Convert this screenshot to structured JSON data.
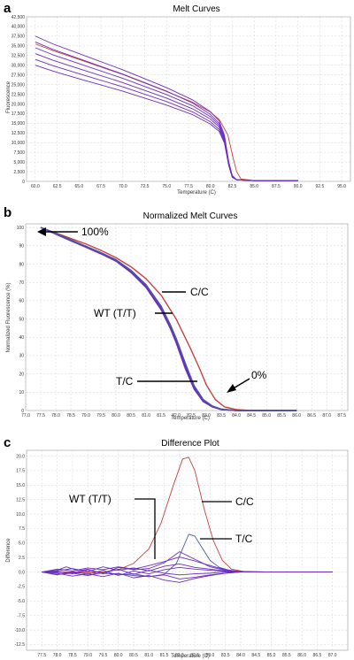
{
  "figure": {
    "panel_letters": [
      "a",
      "b",
      "c"
    ]
  },
  "colors": {
    "purple": "#6a2dc2",
    "red": "#c8423b",
    "steel_blue": "#4a5a9a",
    "grid": "#d4d4d4"
  },
  "chart_data": [
    {
      "type": "line",
      "title": "Melt Curves",
      "xlabel": "Temperature (C)",
      "ylabel": "Fluorescence",
      "x_ticks": [
        60,
        62.5,
        65,
        67.5,
        70,
        72.5,
        75,
        77.5,
        80,
        82.5,
        85,
        87.5,
        90,
        92.5,
        95
      ],
      "x_tick_labels": [
        "60.0",
        "62.5",
        "65.0",
        "67.5",
        "70.0",
        "72.5",
        "75.0",
        "77.5",
        "80.0",
        "82.5",
        "85.0",
        "87.5",
        "90.0",
        "92.5",
        "95.0"
      ],
      "xlim": [
        59,
        96
      ],
      "y_ticks": [
        0,
        2500,
        5000,
        7500,
        10000,
        12500,
        15000,
        17500,
        20000,
        22500,
        25000,
        27500,
        30000,
        32500,
        35000,
        37500,
        40000,
        42500
      ],
      "y_tick_labels": [
        "0",
        "2,500",
        "5,000",
        "7,500",
        "10,000",
        "12,500",
        "15,000",
        "17,500",
        "20,000",
        "22,500",
        "25,000",
        "27,500",
        "30,000",
        "32,500",
        "35,000",
        "37,500",
        "40,000",
        "42,500"
      ],
      "ylim": [
        0,
        42500
      ],
      "grid": true,
      "series": [
        {
          "color": "#c8423b",
          "x": [
            60,
            62,
            65,
            70,
            75,
            78,
            80,
            81,
            82,
            82.6,
            83,
            83.5,
            85,
            87,
            90
          ],
          "y": [
            35500,
            33800,
            31500,
            27600,
            23200,
            20400,
            17900,
            16000,
            12000,
            6000,
            2500,
            600,
            200,
            200,
            200
          ]
        },
        {
          "color": "#6a2dc2",
          "x": [
            60,
            62,
            65,
            70,
            75,
            78,
            80,
            81,
            81.6,
            82.1,
            82.5,
            83,
            85,
            87,
            90
          ],
          "y": [
            37500,
            35500,
            33000,
            28800,
            24200,
            21000,
            18000,
            15600,
            12000,
            5000,
            1500,
            400,
            200,
            200,
            200
          ]
        },
        {
          "color": "#6a2dc2",
          "x": [
            60,
            62,
            65,
            70,
            75,
            78,
            80,
            81,
            81.6,
            82.1,
            82.5,
            83,
            85,
            87,
            90
          ],
          "y": [
            36000,
            34100,
            31700,
            27700,
            23300,
            20200,
            17300,
            15000,
            11500,
            4800,
            1400,
            400,
            200,
            200,
            200
          ]
        },
        {
          "color": "#6a2dc2",
          "x": [
            60,
            62,
            65,
            70,
            75,
            78,
            80,
            81,
            81.6,
            82.1,
            82.5,
            83,
            85,
            87,
            90
          ],
          "y": [
            34500,
            32700,
            30400,
            26600,
            22400,
            19500,
            16700,
            14500,
            11100,
            4600,
            1300,
            400,
            200,
            200,
            200
          ]
        },
        {
          "color": "#6a2dc2",
          "x": [
            60,
            62,
            65,
            70,
            75,
            78,
            80,
            81,
            81.6,
            82.1,
            82.5,
            83,
            85,
            87,
            90
          ],
          "y": [
            33000,
            31300,
            29100,
            25500,
            21500,
            18700,
            16100,
            14000,
            10700,
            4400,
            1200,
            400,
            200,
            200,
            200
          ]
        },
        {
          "color": "#6a2dc2",
          "x": [
            60,
            62,
            65,
            70,
            75,
            78,
            80,
            81,
            81.6,
            82.1,
            82.5,
            83,
            85,
            87,
            90
          ],
          "y": [
            31500,
            29900,
            27800,
            24400,
            20600,
            17900,
            15400,
            13400,
            10300,
            4200,
            1100,
            400,
            200,
            200,
            200
          ]
        },
        {
          "color": "#6a2dc2",
          "x": [
            60,
            62,
            65,
            70,
            75,
            78,
            80,
            81,
            81.6,
            82.1,
            82.5,
            83,
            85,
            87,
            90
          ],
          "y": [
            30000,
            28500,
            26500,
            23300,
            19700,
            17200,
            14800,
            12900,
            9900,
            4000,
            1000,
            400,
            200,
            200,
            200
          ]
        }
      ]
    },
    {
      "type": "line",
      "title": "Normalized Melt Curves",
      "xlabel": "Temperature (C)",
      "ylabel": "Normalized Fluorescence (%)",
      "x_ticks": [
        77,
        77.5,
        78,
        78.5,
        79,
        79.5,
        80,
        80.5,
        81,
        81.5,
        82,
        82.5,
        83,
        83.5,
        84,
        84.5,
        85,
        85.5,
        86,
        86.5,
        87,
        87.5
      ],
      "x_tick_labels": [
        "77.0",
        "77.5",
        "78.0",
        "78.5",
        "79.0",
        "79.5",
        "80.0",
        "80.5",
        "81.0",
        "81.5",
        "82.0",
        "82.5",
        "83.0",
        "83.5",
        "84.0",
        "84.5",
        "85.0",
        "85.5",
        "86.0",
        "86.5",
        "87.0",
        "87.5"
      ],
      "xlim": [
        77,
        87.7
      ],
      "y_ticks": [
        0,
        10,
        20,
        30,
        40,
        50,
        60,
        70,
        80,
        90,
        100
      ],
      "y_tick_labels": [
        "0",
        "10",
        "20",
        "30",
        "40",
        "50",
        "60",
        "70",
        "80",
        "90",
        "100"
      ],
      "ylim": [
        0,
        102
      ],
      "grid": true,
      "annotations": [
        "100%",
        "C/C",
        "WT (T/T)",
        "T/C",
        "0%"
      ],
      "series": [
        {
          "color": "#c8423b",
          "x": [
            77.5,
            78,
            78.5,
            79,
            79.5,
            80,
            80.5,
            81,
            81.5,
            82,
            82.5,
            82.8,
            83,
            83.3,
            83.6,
            84,
            84.5,
            86
          ],
          "y": [
            100,
            97,
            94,
            91,
            87.5,
            83.5,
            78.5,
            72,
            63,
            50,
            33,
            22,
            14,
            6,
            2,
            0.5,
            0,
            0
          ]
        },
        {
          "color": "#6a2dc2",
          "x": [
            77.5,
            78,
            78.5,
            79,
            79.5,
            80,
            80.5,
            81,
            81.5,
            81.8,
            82,
            82.3,
            82.6,
            82.9,
            83.2,
            83.5,
            84,
            86
          ],
          "y": [
            100,
            96.5,
            93,
            89.5,
            86,
            82,
            76,
            68,
            56,
            46,
            38,
            24,
            12,
            5,
            2,
            0.5,
            0,
            0
          ]
        },
        {
          "color": "#6a2dc2",
          "x": [
            77.5,
            78,
            78.5,
            79,
            79.5,
            80,
            80.5,
            81,
            81.5,
            81.8,
            82,
            82.3,
            82.6,
            82.9,
            83.2,
            83.5,
            84,
            86
          ],
          "y": [
            100,
            96.7,
            93.3,
            89.8,
            86.3,
            82.4,
            76.6,
            68.7,
            57,
            47,
            39,
            25,
            12.5,
            5.2,
            2,
            0.5,
            0,
            0
          ]
        },
        {
          "color": "#6a2dc2",
          "x": [
            77.5,
            78,
            78.5,
            79,
            79.5,
            80,
            80.5,
            81,
            81.5,
            81.8,
            82,
            82.3,
            82.6,
            82.9,
            83.2,
            83.5,
            84,
            86
          ],
          "y": [
            100,
            96.3,
            92.7,
            89.2,
            85.6,
            81.6,
            75.4,
            67.2,
            55,
            45,
            37,
            23,
            11.5,
            4.8,
            2,
            0.5,
            0,
            0
          ]
        },
        {
          "color": "#4a5a9a",
          "x": [
            77.5,
            78,
            78.5,
            79,
            79.5,
            80,
            80.5,
            81,
            81.5,
            81.8,
            82,
            82.3,
            82.6,
            82.9,
            83.2,
            83.5,
            84,
            86
          ],
          "y": [
            100,
            96.6,
            93.2,
            89.7,
            86.2,
            82.3,
            76.4,
            68.5,
            56.8,
            47,
            39.5,
            26,
            13.5,
            6,
            2.5,
            0.8,
            0,
            0
          ]
        }
      ]
    },
    {
      "type": "line",
      "title": "Difference Plot",
      "xlabel": "Temperature (C)",
      "ylabel": "Difference",
      "x_ticks": [
        77.5,
        78,
        78.5,
        79,
        79.5,
        80,
        80.5,
        81,
        81.5,
        82,
        82.5,
        83,
        83.5,
        84,
        84.5,
        85,
        85.5,
        86,
        86.5,
        87
      ],
      "x_tick_labels": [
        "77.5",
        "78.0",
        "78.5",
        "79.0",
        "79.5",
        "80.0",
        "80.5",
        "81.0",
        "81.5",
        "82.0",
        "82.5",
        "83.0",
        "83.5",
        "84.0",
        "84.5",
        "85.0",
        "85.5",
        "86.0",
        "86.5",
        "87.0"
      ],
      "xlim": [
        77,
        87.5
      ],
      "y_ticks": [
        -12.5,
        -10,
        -7.5,
        -5,
        -2.5,
        0,
        2.5,
        5,
        7.5,
        10,
        12.5,
        15,
        17.5,
        20
      ],
      "y_tick_labels": [
        "-12.5",
        "-10.0",
        "-7.5",
        "-5.0",
        "-2.5",
        "0.0",
        "2.5",
        "5.0",
        "7.5",
        "10.0",
        "12.5",
        "15.0",
        "17.5",
        "20.0"
      ],
      "ylim": [
        -13.5,
        21
      ],
      "grid": true,
      "annotations": [
        "WT (T/T)",
        "C/C",
        "T/C"
      ],
      "series": [
        {
          "color": "#c8423b",
          "x": [
            77.5,
            79.5,
            80,
            80.5,
            81,
            81.4,
            81.8,
            82.1,
            82.3,
            82.5,
            82.8,
            83.1,
            83.4,
            83.7,
            84.2,
            87
          ],
          "y": [
            0,
            0,
            0.4,
            1.5,
            4,
            8.5,
            15,
            19.5,
            19.8,
            17.5,
            11,
            5.5,
            2,
            0.5,
            0,
            0
          ]
        },
        {
          "color": "#4a5a9a",
          "x": [
            77.5,
            80,
            80.5,
            81,
            81.5,
            81.9,
            82.1,
            82.3,
            82.5,
            82.7,
            83,
            83.3,
            83.7,
            84.2,
            87
          ],
          "y": [
            0,
            -0.3,
            -0.6,
            -0.8,
            -0.4,
            1.5,
            4,
            6.5,
            6.2,
            4.5,
            2,
            0.8,
            0.2,
            0,
            0
          ]
        },
        {
          "color": "#6a2dc2",
          "x": [
            77.5,
            78,
            78.3,
            78.7,
            79,
            79.5,
            80,
            80.5,
            81,
            81.5,
            82,
            82.5,
            83,
            83.5,
            84,
            85,
            87
          ],
          "y": [
            0,
            0.3,
            0.9,
            0.2,
            0.5,
            -0.3,
            0.8,
            0.4,
            0.6,
            1.6,
            3.5,
            2.2,
            0.9,
            0.3,
            0.1,
            0,
            0
          ]
        },
        {
          "color": "#6a2dc2",
          "x": [
            77.5,
            78,
            78.5,
            79,
            79.5,
            80,
            80.5,
            81,
            81.5,
            82,
            82.5,
            83,
            83.5,
            84,
            85,
            87
          ],
          "y": [
            0,
            -0.4,
            -0.2,
            -0.6,
            -0.1,
            -0.5,
            -0.3,
            -0.8,
            -0.5,
            -1.2,
            -0.9,
            -0.5,
            -0.2,
            0,
            0,
            0
          ]
        },
        {
          "color": "#6a2dc2",
          "x": [
            77.5,
            78,
            78.5,
            79,
            79.5,
            80,
            80.5,
            81,
            81.5,
            82,
            82.5,
            83,
            83.5,
            84,
            85,
            87
          ],
          "y": [
            0,
            0.5,
            0.2,
            0.7,
            0.4,
            0.9,
            0.5,
            1.1,
            1.8,
            2.6,
            1.9,
            1.1,
            0.4,
            0.1,
            0,
            0
          ]
        },
        {
          "color": "#6a2dc2",
          "x": [
            77.5,
            78,
            78.5,
            79,
            79.5,
            80,
            80.5,
            81,
            81.5,
            82,
            82.5,
            83,
            83.5,
            84,
            85,
            87
          ],
          "y": [
            0,
            -0.2,
            -0.7,
            -0.3,
            -0.8,
            -0.2,
            -1,
            -0.6,
            -1.4,
            -1.8,
            -1.1,
            -0.6,
            -0.2,
            0,
            0,
            0
          ]
        },
        {
          "color": "#6a2dc2",
          "x": [
            77.5,
            78,
            78.5,
            79,
            79.5,
            80,
            80.5,
            81,
            81.5,
            82,
            82.5,
            83,
            83.5,
            84,
            85,
            87
          ],
          "y": [
            0,
            0.2,
            0.6,
            0.1,
            0.9,
            0.3,
            0.7,
            0.2,
            1,
            1.4,
            0.8,
            0.5,
            0.2,
            0,
            0,
            0
          ]
        },
        {
          "color": "#6a2dc2",
          "x": [
            77.5,
            78,
            78.5,
            79,
            79.5,
            80,
            80.5,
            81,
            81.5,
            82,
            82.5,
            83,
            83.5,
            84,
            85,
            87
          ],
          "y": [
            0,
            -0.5,
            0.1,
            -0.4,
            0.3,
            -0.6,
            0.2,
            -0.3,
            0.4,
            0.8,
            0.5,
            0.3,
            0.1,
            0,
            0,
            0
          ]
        },
        {
          "color": "#6a2dc2",
          "x": [
            77.5,
            78,
            78.5,
            79,
            79.5,
            80,
            80.5,
            81,
            81.5,
            82,
            82.5,
            83,
            83.5,
            84,
            85,
            87
          ],
          "y": [
            0,
            0.1,
            -0.3,
            0.4,
            -0.2,
            0.5,
            -0.4,
            0.3,
            -0.2,
            -0.5,
            -0.3,
            -0.2,
            0,
            0,
            0,
            0
          ]
        }
      ]
    }
  ]
}
